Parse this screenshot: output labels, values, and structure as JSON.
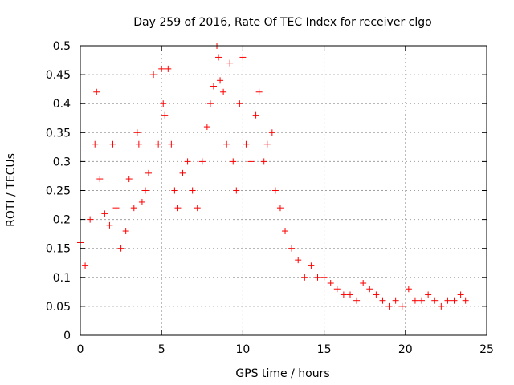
{
  "chart_data": {
    "type": "scatter",
    "title": "Day 259 of 2016, Rate Of TEC Index for receiver clgo",
    "xlabel": "GPS time / hours",
    "ylabel": "ROTI / TECUs",
    "xlim": [
      0,
      25
    ],
    "ylim": [
      0,
      0.5
    ],
    "xticks": [
      0,
      5,
      10,
      15,
      20,
      25
    ],
    "yticks": [
      0,
      0.05,
      0.1,
      0.15,
      0.2,
      0.25,
      0.3,
      0.35,
      0.4,
      0.45,
      0.5
    ],
    "grid": true,
    "marker": "+",
    "color": "#ff0000",
    "series": [
      {
        "name": "ROTI",
        "x": [
          0.0,
          0.3,
          0.6,
          0.9,
          1.0,
          1.2,
          1.5,
          1.8,
          2.0,
          2.2,
          2.5,
          2.8,
          3.0,
          3.3,
          3.5,
          3.6,
          3.8,
          4.0,
          4.2,
          4.5,
          4.8,
          5.0,
          5.1,
          5.2,
          5.4,
          5.6,
          5.8,
          6.0,
          6.3,
          6.6,
          6.9,
          7.2,
          7.5,
          7.8,
          8.0,
          8.2,
          8.4,
          8.5,
          8.6,
          8.8,
          9.0,
          9.2,
          9.4,
          9.6,
          9.8,
          10.0,
          10.2,
          10.5,
          10.8,
          11.0,
          11.3,
          11.5,
          11.8,
          12.0,
          12.3,
          12.6,
          13.0,
          13.4,
          13.8,
          14.2,
          14.6,
          15.0,
          15.4,
          15.8,
          16.2,
          16.6,
          17.0,
          17.4,
          17.8,
          18.2,
          18.6,
          19.0,
          19.4,
          19.8,
          20.2,
          20.6,
          21.0,
          21.4,
          21.8,
          22.2,
          22.6,
          23.0,
          23.4,
          23.7
        ],
        "y": [
          0.16,
          0.12,
          0.2,
          0.33,
          0.42,
          0.27,
          0.21,
          0.19,
          0.33,
          0.22,
          0.15,
          0.18,
          0.27,
          0.22,
          0.35,
          0.33,
          0.23,
          0.25,
          0.28,
          0.45,
          0.33,
          0.46,
          0.4,
          0.38,
          0.46,
          0.33,
          0.25,
          0.22,
          0.28,
          0.3,
          0.25,
          0.22,
          0.3,
          0.36,
          0.4,
          0.43,
          0.5,
          0.48,
          0.44,
          0.42,
          0.33,
          0.47,
          0.3,
          0.25,
          0.4,
          0.48,
          0.33,
          0.3,
          0.38,
          0.42,
          0.3,
          0.33,
          0.35,
          0.25,
          0.22,
          0.18,
          0.15,
          0.13,
          0.1,
          0.12,
          0.1,
          0.1,
          0.09,
          0.08,
          0.07,
          0.07,
          0.06,
          0.09,
          0.08,
          0.07,
          0.06,
          0.05,
          0.06,
          0.05,
          0.08,
          0.06,
          0.06,
          0.07,
          0.06,
          0.05,
          0.06,
          0.06,
          0.07,
          0.06
        ]
      }
    ]
  }
}
